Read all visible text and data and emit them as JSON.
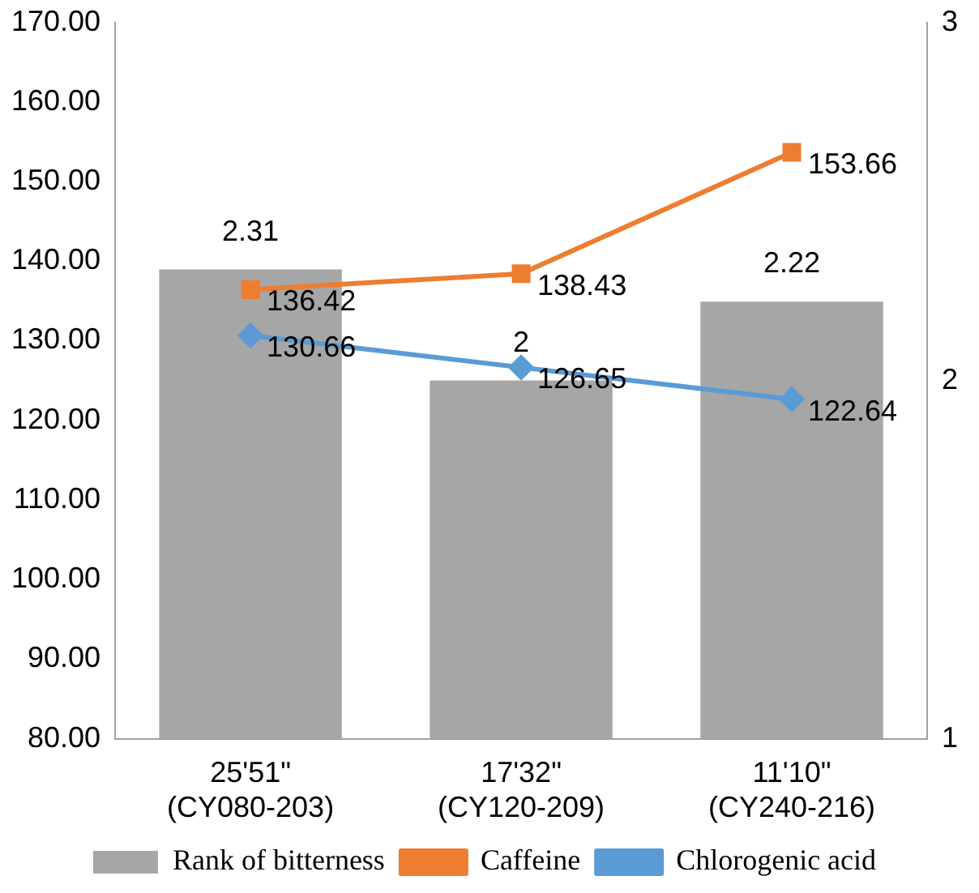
{
  "chart_data": {
    "type": "bar",
    "categories": [
      "25'51\"\n(CY080-203)",
      "17'32\"\n(CY120-209)",
      "11'10\"\n(CY240-216)"
    ],
    "series": [
      {
        "name": "Rank of bitterness",
        "axis": "y2",
        "color": "#a6a6a6",
        "values": [
          2.31,
          2,
          2.22
        ]
      },
      {
        "name": "Caffeine",
        "type": "line",
        "axis": "y",
        "color": "#ed7d31",
        "marker": "square",
        "values": [
          136.42,
          138.43,
          153.66
        ]
      },
      {
        "name": "Chlorogenic acid",
        "type": "line",
        "axis": "y",
        "color": "#5b9bd5",
        "marker": "diamond",
        "values": [
          130.66,
          126.65,
          122.64
        ]
      }
    ],
    "ylim": [
      80,
      170
    ],
    "yticks": [
      {
        "value": 80,
        "label": "80.00"
      },
      {
        "value": 90,
        "label": "90.00"
      },
      {
        "value": 100,
        "label": "100.00"
      },
      {
        "value": 110,
        "label": "110.00"
      },
      {
        "value": 120,
        "label": "120.00"
      },
      {
        "value": 130,
        "label": "130.00"
      },
      {
        "value": 140,
        "label": "140.00"
      },
      {
        "value": 150,
        "label": "150.00"
      },
      {
        "value": 160,
        "label": "160.00"
      },
      {
        "value": 170,
        "label": "170.00"
      }
    ],
    "y2lim": [
      1,
      3
    ],
    "y2ticks": [
      1,
      2,
      3
    ],
    "data_labels": true,
    "grid": false,
    "legend": "bottom"
  }
}
